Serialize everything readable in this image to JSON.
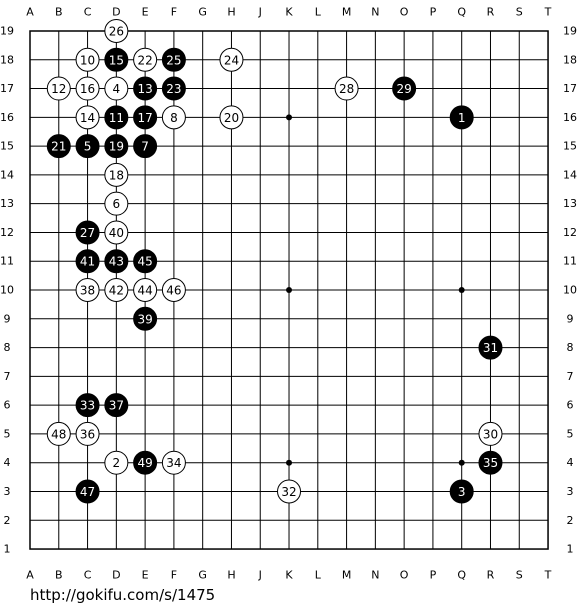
{
  "board": {
    "columns": [
      "A",
      "B",
      "C",
      "D",
      "E",
      "F",
      "G",
      "H",
      "J",
      "K",
      "L",
      "M",
      "N",
      "O",
      "P",
      "Q",
      "R",
      "S",
      "T"
    ],
    "rows": [
      19,
      18,
      17,
      16,
      15,
      14,
      13,
      12,
      11,
      10,
      9,
      8,
      7,
      6,
      5,
      4,
      3,
      2,
      1
    ],
    "star_points": [
      [
        "D",
        16
      ],
      [
        "K",
        16
      ],
      [
        "Q",
        16
      ],
      [
        "D",
        10
      ],
      [
        "K",
        10
      ],
      [
        "Q",
        10
      ],
      [
        "D",
        4
      ],
      [
        "K",
        4
      ],
      [
        "Q",
        4
      ]
    ],
    "stones": [
      {
        "number": 26,
        "color": "white",
        "col": "D",
        "row": 19
      },
      {
        "number": 10,
        "color": "white",
        "col": "C",
        "row": 18
      },
      {
        "number": 15,
        "color": "black",
        "col": "D",
        "row": 18
      },
      {
        "number": 22,
        "color": "white",
        "col": "E",
        "row": 18
      },
      {
        "number": 25,
        "color": "black",
        "col": "F",
        "row": 18
      },
      {
        "number": 24,
        "color": "white",
        "col": "H",
        "row": 18
      },
      {
        "number": 12,
        "color": "white",
        "col": "B",
        "row": 17
      },
      {
        "number": 16,
        "color": "white",
        "col": "C",
        "row": 17
      },
      {
        "number": 4,
        "color": "white",
        "col": "D",
        "row": 17
      },
      {
        "number": 13,
        "color": "black",
        "col": "E",
        "row": 17
      },
      {
        "number": 23,
        "color": "black",
        "col": "F",
        "row": 17
      },
      {
        "number": 28,
        "color": "white",
        "col": "M",
        "row": 17
      },
      {
        "number": 29,
        "color": "black",
        "col": "O",
        "row": 17
      },
      {
        "number": 14,
        "color": "white",
        "col": "C",
        "row": 16
      },
      {
        "number": 11,
        "color": "black",
        "col": "D",
        "row": 16
      },
      {
        "number": 17,
        "color": "black",
        "col": "E",
        "row": 16
      },
      {
        "number": 8,
        "color": "white",
        "col": "F",
        "row": 16
      },
      {
        "number": 20,
        "color": "white",
        "col": "H",
        "row": 16
      },
      {
        "number": 1,
        "color": "black",
        "col": "Q",
        "row": 16
      },
      {
        "number": 21,
        "color": "black",
        "col": "B",
        "row": 15
      },
      {
        "number": 5,
        "color": "black",
        "col": "C",
        "row": 15
      },
      {
        "number": 19,
        "color": "black",
        "col": "D",
        "row": 15
      },
      {
        "number": 7,
        "color": "black",
        "col": "E",
        "row": 15
      },
      {
        "number": 18,
        "color": "white",
        "col": "D",
        "row": 14
      },
      {
        "number": 6,
        "color": "white",
        "col": "D",
        "row": 13
      },
      {
        "number": 27,
        "color": "black",
        "col": "C",
        "row": 12
      },
      {
        "number": 40,
        "color": "white",
        "col": "D",
        "row": 12
      },
      {
        "number": 41,
        "color": "black",
        "col": "C",
        "row": 11
      },
      {
        "number": 43,
        "color": "black",
        "col": "D",
        "row": 11
      },
      {
        "number": 45,
        "color": "black",
        "col": "E",
        "row": 11
      },
      {
        "number": 38,
        "color": "white",
        "col": "C",
        "row": 10
      },
      {
        "number": 42,
        "color": "white",
        "col": "D",
        "row": 10
      },
      {
        "number": 44,
        "color": "white",
        "col": "E",
        "row": 10
      },
      {
        "number": 46,
        "color": "white",
        "col": "F",
        "row": 10
      },
      {
        "number": 39,
        "color": "black",
        "col": "E",
        "row": 9
      },
      {
        "number": 31,
        "color": "black",
        "col": "R",
        "row": 8
      },
      {
        "number": 33,
        "color": "black",
        "col": "C",
        "row": 6
      },
      {
        "number": 37,
        "color": "black",
        "col": "D",
        "row": 6
      },
      {
        "number": 48,
        "color": "white",
        "col": "B",
        "row": 5
      },
      {
        "number": 36,
        "color": "white",
        "col": "C",
        "row": 5
      },
      {
        "number": 30,
        "color": "white",
        "col": "R",
        "row": 5
      },
      {
        "number": 2,
        "color": "white",
        "col": "D",
        "row": 4
      },
      {
        "number": 49,
        "color": "black",
        "col": "E",
        "row": 4
      },
      {
        "number": 34,
        "color": "white",
        "col": "F",
        "row": 4
      },
      {
        "number": 35,
        "color": "black",
        "col": "R",
        "row": 4
      },
      {
        "number": 47,
        "color": "black",
        "col": "C",
        "row": 3
      },
      {
        "number": 32,
        "color": "white",
        "col": "K",
        "row": 3
      },
      {
        "number": 3,
        "color": "black",
        "col": "Q",
        "row": 3
      }
    ]
  },
  "footer": {
    "url": "http://gokifu.com/s/1475"
  }
}
